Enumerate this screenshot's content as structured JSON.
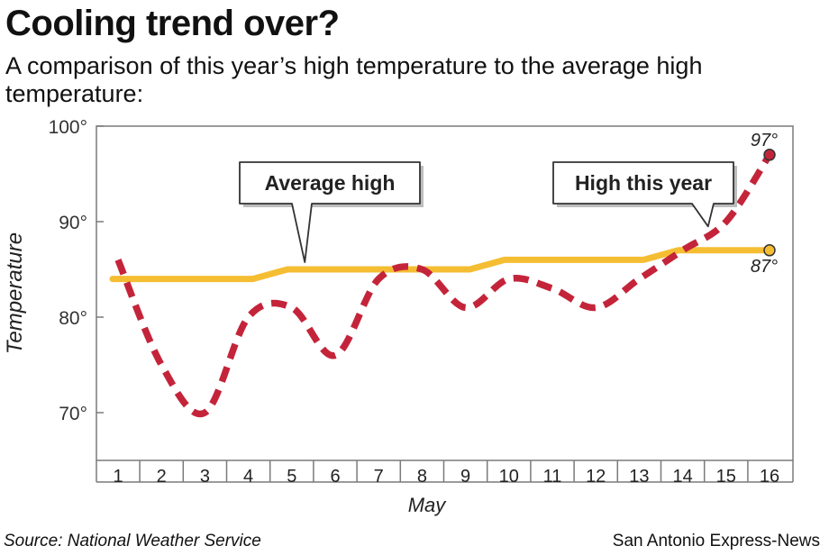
{
  "title": "Cooling trend over?",
  "subtitle": "A comparison of this year’s high temperature to the average high temperature:",
  "source": "Source: National Weather Service",
  "credit": "San Antonio Express-News",
  "chart_data": {
    "type": "line",
    "xlabel": "May",
    "ylabel": "Temperature",
    "x": [
      1,
      2,
      3,
      4,
      5,
      6,
      7,
      8,
      9,
      10,
      11,
      12,
      13,
      14,
      15,
      16
    ],
    "xticks": [
      "1",
      "2",
      "3",
      "4",
      "5",
      "6",
      "7",
      "8",
      "9",
      "10",
      "11",
      "12",
      "13",
      "14",
      "15",
      "16"
    ],
    "yticks": [
      "100°",
      "90°",
      "80°",
      "70°"
    ],
    "ylim": [
      65,
      100
    ],
    "grid": false,
    "series": [
      {
        "name": "Average high",
        "style": "solid",
        "color": "#f5bd32",
        "values": [
          84,
          84,
          84,
          84,
          85,
          85,
          85,
          85,
          85,
          86,
          86,
          86,
          86,
          87,
          87,
          87
        ]
      },
      {
        "name": "High this year",
        "style": "dashed",
        "color": "#c4243a",
        "values": [
          86,
          75,
          70,
          80,
          81,
          76,
          84,
          85,
          81,
          84,
          83,
          81,
          84,
          87,
          90,
          97
        ]
      }
    ],
    "annotations": [
      {
        "text": "97°",
        "series": 1,
        "x": 16,
        "y": 97
      },
      {
        "text": "87°",
        "series": 0,
        "x": 16,
        "y": 87
      }
    ]
  }
}
